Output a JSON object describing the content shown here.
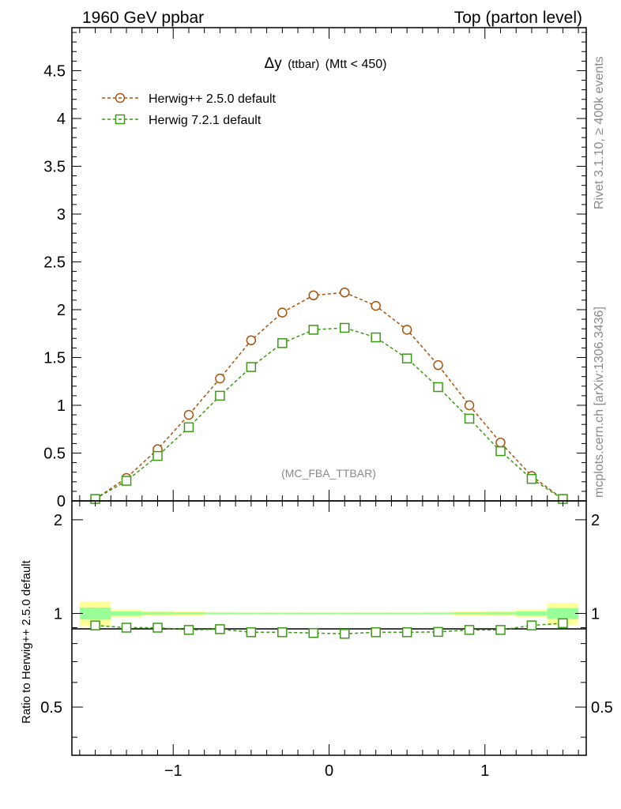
{
  "header": {
    "left_title": "1960 GeV ppbar",
    "right_title": "Top (parton level)"
  },
  "side_labels": {
    "rivet": "Rivet 3.1.10, ≥ 400k events",
    "mcplots": "mcplots.cern.ch [arXiv:1306.3436]"
  },
  "colors": {
    "herwigpp": "#a8530a",
    "herwig7": "#3a9a14",
    "band_yellow": "#ffff99",
    "band_green": "#99ff99"
  },
  "chart_data": [
    {
      "type": "line",
      "title_symbol": "Δy",
      "title_detail": "(ttbar)",
      "title_cut": "(Mtt < 450)",
      "watermark": "(MC_FBA_TTBAR)",
      "xlabel": "",
      "ylabel": "",
      "xlim": [
        -1.65,
        1.65
      ],
      "ylim": [
        0,
        4.95
      ],
      "yticks": [
        0,
        0.5,
        1,
        1.5,
        2,
        2.5,
        3,
        3.5,
        4,
        4.5
      ],
      "ytick_labels": [
        "0",
        "0.5",
        "1",
        "1.5",
        "2",
        "2.5",
        "3",
        "3.5",
        "4",
        "4.5"
      ],
      "x": [
        -1.5,
        -1.3,
        -1.1,
        -0.9,
        -0.7,
        -0.5,
        -0.3,
        -0.1,
        0.1,
        0.3,
        0.5,
        0.7,
        0.9,
        1.1,
        1.3,
        1.5
      ],
      "series": [
        {
          "name": "Herwig++ 2.5.0 default",
          "marker": "circle",
          "values": [
            0.02,
            0.24,
            0.54,
            0.9,
            1.28,
            1.68,
            1.97,
            2.15,
            2.18,
            2.04,
            1.79,
            1.42,
            1.0,
            0.61,
            0.26,
            0.02
          ]
        },
        {
          "name": "Herwig 7.2.1 default",
          "marker": "square",
          "values": [
            0.02,
            0.21,
            0.47,
            0.77,
            1.1,
            1.4,
            1.65,
            1.79,
            1.81,
            1.71,
            1.49,
            1.19,
            0.86,
            0.52,
            0.23,
            0.02
          ]
        }
      ]
    },
    {
      "type": "line",
      "title": "",
      "xlabel": "",
      "ylabel": "Ratio to Herwig++ 2.5.0 default",
      "xlim": [
        -1.65,
        1.65
      ],
      "ylim": [
        0.35,
        2.3
      ],
      "xticks": [
        -1,
        0,
        1
      ],
      "xtick_labels": [
        "−1",
        "0",
        "1"
      ],
      "yticks": [
        0.5,
        1,
        2
      ],
      "ytick_labels": [
        "0.5",
        "1",
        "2"
      ],
      "reference_line": 1,
      "x": [
        -1.5,
        -1.3,
        -1.1,
        -0.9,
        -0.7,
        -0.5,
        -0.3,
        -0.1,
        0.1,
        0.3,
        0.5,
        0.7,
        0.9,
        1.1,
        1.3,
        1.5
      ],
      "bin_edges": [
        -1.6,
        -1.4,
        -1.2,
        -1.0,
        -0.8,
        -0.6,
        -0.4,
        -0.2,
        0.0,
        0.2,
        0.4,
        0.6,
        0.8,
        1.0,
        1.2,
        1.4,
        1.6
      ],
      "band_yellow_halfwidth": [
        0.09,
        0.03,
        0.02,
        0.015,
        0.01,
        0.01,
        0.01,
        0.01,
        0.01,
        0.01,
        0.01,
        0.01,
        0.015,
        0.02,
        0.03,
        0.08
      ],
      "band_green_halfwidth": [
        0.045,
        0.015,
        0.01,
        0.008,
        0.006,
        0.005,
        0.005,
        0.005,
        0.005,
        0.005,
        0.005,
        0.006,
        0.008,
        0.01,
        0.015,
        0.04
      ],
      "series": [
        {
          "name": "Herwig 7.2.1 default",
          "marker": "square",
          "values": [
            0.915,
            0.9,
            0.9,
            0.885,
            0.89,
            0.87,
            0.87,
            0.865,
            0.86,
            0.87,
            0.87,
            0.872,
            0.885,
            0.885,
            0.915,
            0.93
          ]
        }
      ]
    }
  ]
}
